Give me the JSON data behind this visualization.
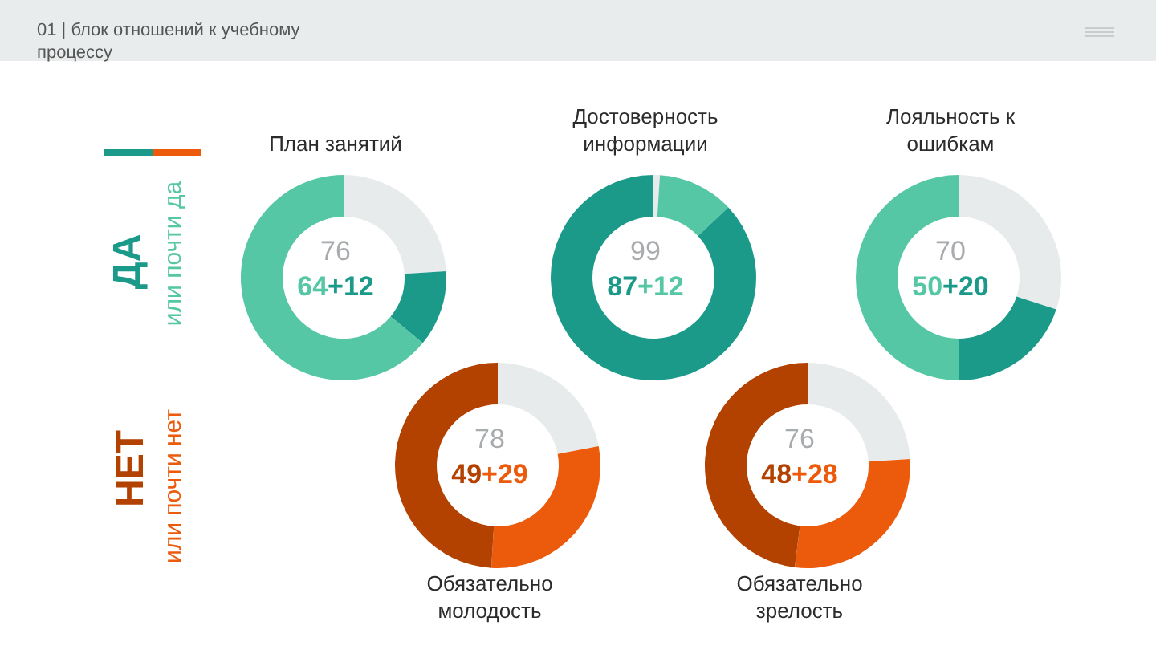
{
  "chart_data": [
    {
      "type": "donut",
      "title": "План занятий",
      "categories": [
        null,
        null,
        null
      ],
      "values": [
        24,
        12,
        64
      ],
      "colors": [
        "#e8ebec",
        "#1b9a8a",
        "#55c7a5"
      ],
      "annotations": [
        "76",
        "64+12"
      ]
    },
    {
      "type": "donut",
      "title": "Достоверность информации",
      "categories": [
        null,
        null,
        null
      ],
      "values": [
        1,
        12,
        87
      ],
      "colors": [
        "#e8ebec",
        "#55c7a5",
        "#1b9a8a"
      ],
      "annotations": [
        "99",
        "87+12"
      ]
    },
    {
      "type": "donut",
      "title": "Лояльность к ошибкам",
      "categories": [
        null,
        null,
        null
      ],
      "values": [
        30,
        20,
        50
      ],
      "colors": [
        "#e8ebec",
        "#1b9a8a",
        "#55c7a5"
      ],
      "annotations": [
        "70",
        "50+20"
      ]
    },
    {
      "type": "donut",
      "title": "Обязательно молодость",
      "categories": [
        null,
        null,
        null
      ],
      "values": [
        22,
        29,
        49
      ],
      "colors": [
        "#e8ebec",
        "#ec5a0c",
        "#b34100"
      ],
      "annotations": [
        "78",
        "49+29"
      ]
    },
    {
      "type": "donut",
      "title": "Обязательно зрелость",
      "categories": [
        null,
        null,
        null
      ],
      "values": [
        24,
        28,
        48
      ],
      "colors": [
        "#e8ebec",
        "#ec5a0c",
        "#b34100"
      ],
      "annotations": [
        "76",
        "48+28"
      ]
    },
    {
      "type": "other",
      "title": "01 | блок отношений к учебному процессу",
      "annotations": [
        "ДА",
        "или почти да",
        "НЕТ",
        "или почти нет"
      ]
    }
  ]
}
